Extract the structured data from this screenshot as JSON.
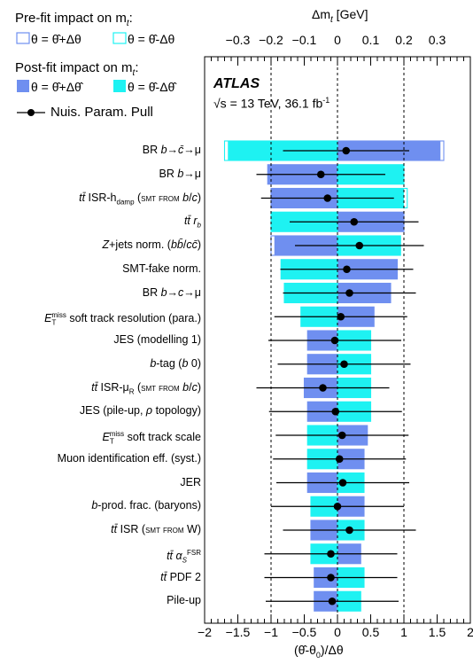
{
  "legend": {
    "prefit_title": "Pre-fit impact on m",
    "prefit_title_sub": "t",
    "prefit_up": "θ = θ̂+Δθ",
    "prefit_down": "θ = θ̂-Δθ",
    "postfit_title": "Post-fit impact on m",
    "postfit_title_sub": "t",
    "postfit_up": "θ = θ̂+Δθ̂",
    "postfit_down": "θ = θ̂-Δθ̂",
    "pull_label": "Nuis. Param. Pull"
  },
  "atlas_label": "ATLAS",
  "energy_label": "√s = 13 TeV, 36.1 fb",
  "energy_sup": "-1",
  "colors": {
    "postfit_up": "#6f8ff0",
    "postfit_down": "#1ef2f2",
    "prefit_up_line": "#6f8ff0",
    "prefit_down_line": "#1ef2f2"
  },
  "chart_data": {
    "type": "bar",
    "top_axis": {
      "title": "Δm",
      "title_sub": "t",
      "title_unit": " [GeV]",
      "range": [
        -0.4,
        0.4
      ],
      "ticks": [
        -0.3,
        -0.2,
        -0.1,
        0,
        0.1,
        0.2,
        0.3
      ],
      "tick_labels": [
        "−0.3",
        "−0.2",
        "−0.1",
        "0",
        "0.1",
        "0.2",
        "0.3"
      ]
    },
    "bottom_axis": {
      "title": "(θ̂-θ",
      "title_sub": "0",
      "title_end": ")/Δθ",
      "range": [
        -2,
        2
      ],
      "ticks": [
        -2,
        -1.5,
        -1,
        -0.5,
        0,
        0.5,
        1,
        1.5,
        2
      ],
      "tick_labels": [
        "−2",
        "−1.5",
        "−1",
        "−0.5",
        "0",
        "0.5",
        "1",
        "1.5",
        "2"
      ]
    },
    "dashed_lines": [
      -1,
      1
    ],
    "rows": [
      {
        "label": "BR b→c̄→μ",
        "postfit_up": 0.31,
        "postfit_down": -0.33,
        "prefit_up": 0.32,
        "prefit_down": -0.34,
        "pull": 0.13,
        "err": 0.95
      },
      {
        "label": "BR b→μ",
        "postfit_up": -0.21,
        "postfit_down": 0.2,
        "prefit_up": -0.21,
        "prefit_down": 0.2,
        "pull": -0.25,
        "err": 0.97
      },
      {
        "label": "tt̄ ISR-h_damp (SMT from b/c)",
        "postfit_up": -0.2,
        "postfit_down": 0.2,
        "prefit_up": -0.2,
        "prefit_down": 0.21,
        "pull": -0.15,
        "err": 1.0
      },
      {
        "label": "tt̄ r_b",
        "postfit_up": 0.2,
        "postfit_down": -0.2,
        "prefit_up": 0.2,
        "prefit_down": -0.2,
        "pull": 0.25,
        "err": 0.97
      },
      {
        "label": "Z+jets norm. (bb̄/cc̄)",
        "postfit_up": -0.19,
        "postfit_down": 0.19,
        "prefit_up": -0.2,
        "prefit_down": 0.19,
        "pull": 0.33,
        "err": 0.97
      },
      {
        "label": "SMT-fake norm.",
        "postfit_up": 0.18,
        "postfit_down": -0.17,
        "prefit_up": 0.18,
        "prefit_down": -0.17,
        "pull": 0.14,
        "err": 1.0
      },
      {
        "label": "BR b→c→μ",
        "postfit_up": 0.16,
        "postfit_down": -0.16,
        "prefit_up": 0.16,
        "prefit_down": -0.16,
        "pull": 0.18,
        "err": 1.0
      },
      {
        "label": "E_T^miss soft track resolution (para.)",
        "postfit_up": 0.11,
        "postfit_down": -0.11,
        "prefit_up": 0.11,
        "prefit_down": -0.11,
        "pull": 0.05,
        "err": 1.0
      },
      {
        "label": "JES (modelling 1)",
        "postfit_up": -0.09,
        "postfit_down": 0.1,
        "prefit_up": -0.09,
        "prefit_down": 0.1,
        "pull": -0.04,
        "err": 1.0
      },
      {
        "label": "b-tag (b 0)",
        "postfit_up": -0.09,
        "postfit_down": 0.1,
        "prefit_up": -0.09,
        "prefit_down": 0.1,
        "pull": 0.1,
        "err": 1.0
      },
      {
        "label": "tt̄ ISR-μ_R (SMT from b/c)",
        "postfit_up": -0.1,
        "postfit_down": 0.1,
        "prefit_up": -0.1,
        "prefit_down": 0.1,
        "pull": -0.22,
        "err": 1.0
      },
      {
        "label": "JES (pile-up, ρ topology)",
        "postfit_up": -0.09,
        "postfit_down": 0.1,
        "prefit_up": -0.09,
        "prefit_down": 0.1,
        "pull": -0.03,
        "err": 1.0
      },
      {
        "label": "E_T^miss soft track scale",
        "postfit_up": 0.09,
        "postfit_down": -0.09,
        "prefit_up": 0.09,
        "prefit_down": -0.09,
        "pull": 0.07,
        "err": 1.0
      },
      {
        "label": "Muon identification eff. (syst.)",
        "postfit_up": 0.08,
        "postfit_down": -0.09,
        "prefit_up": 0.08,
        "prefit_down": -0.09,
        "pull": 0.03,
        "err": 1.0
      },
      {
        "label": "JER",
        "postfit_up": -0.09,
        "postfit_down": 0.08,
        "prefit_up": -0.09,
        "prefit_down": 0.08,
        "pull": 0.08,
        "err": 1.0
      },
      {
        "label": "b-prod. frac. (baryons)",
        "postfit_up": 0.08,
        "postfit_down": -0.08,
        "prefit_up": 0.08,
        "prefit_down": -0.08,
        "pull": 0.0,
        "err": 1.0
      },
      {
        "label": "tt̄ ISR (SMT from W)",
        "postfit_up": -0.08,
        "postfit_down": 0.08,
        "prefit_up": -0.08,
        "prefit_down": 0.08,
        "pull": 0.18,
        "err": 1.0
      },
      {
        "label": "tt̄ α_S^FSR",
        "postfit_up": 0.07,
        "postfit_down": -0.08,
        "prefit_up": 0.07,
        "prefit_down": -0.08,
        "pull": -0.1,
        "err": 1.0
      },
      {
        "label": "tt̄ PDF 2",
        "postfit_up": -0.07,
        "postfit_down": 0.08,
        "prefit_up": -0.07,
        "prefit_down": 0.08,
        "pull": -0.1,
        "err": 1.0
      },
      {
        "label": "Pile-up",
        "postfit_up": -0.07,
        "postfit_down": 0.07,
        "prefit_up": -0.07,
        "prefit_down": 0.07,
        "pull": -0.08,
        "err": 1.0
      }
    ]
  }
}
